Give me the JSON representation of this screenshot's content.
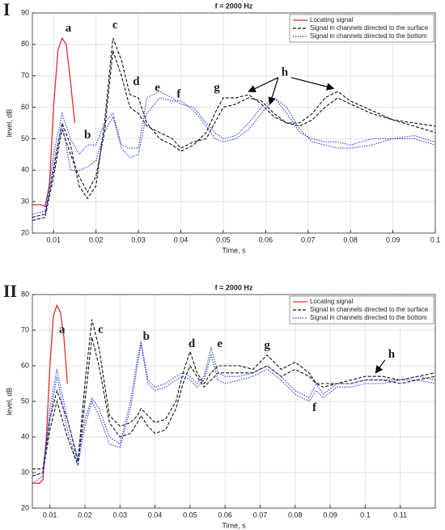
{
  "chart_data": [
    {
      "type": "line",
      "panel_label": "I",
      "title": "f = 2000 Hz",
      "x_label": "Time, s",
      "y_label": "level, dB",
      "xlim": [
        0.005,
        0.1
      ],
      "xticks": [
        0.01,
        0.02,
        0.03,
        0.04,
        0.05,
        0.06,
        0.07,
        0.08,
        0.09,
        0.1
      ],
      "ylim": [
        20,
        90
      ],
      "yticks": [
        20,
        30,
        40,
        50,
        60,
        70,
        80,
        90
      ],
      "grid": true,
      "legend": "top-right",
      "series": [
        {
          "name": "Locating signal",
          "color": "#e03030",
          "style": "solid",
          "x": [
            0.005,
            0.007,
            0.008,
            0.009,
            0.01,
            0.011,
            0.012,
            0.013,
            0.014,
            0.015
          ],
          "values": [
            [
              29,
              29,
              28.5,
              35,
              60,
              78,
              82,
              80,
              68,
              55
            ]
          ]
        },
        {
          "name": "Signal in channels directed to the surface",
          "color": "#111111",
          "style": "dashed",
          "x": [
            0.005,
            0.008,
            0.01,
            0.012,
            0.014,
            0.016,
            0.018,
            0.02,
            0.022,
            0.024,
            0.026,
            0.028,
            0.03,
            0.032,
            0.035,
            0.038,
            0.04,
            0.043,
            0.046,
            0.048,
            0.05,
            0.053,
            0.056,
            0.059,
            0.062,
            0.065,
            0.068,
            0.071,
            0.074,
            0.077,
            0.08,
            0.085,
            0.09,
            0.095,
            0.1
          ],
          "values": [
            [
              25,
              26,
              40,
              55,
              48,
              35,
              31,
              35,
              55,
              82,
              75,
              64,
              63,
              55,
              50,
              48,
              46,
              48,
              52,
              58,
              63,
              63,
              64,
              61,
              57,
              55,
              55,
              58,
              63,
              65,
              62,
              59,
              56,
              55,
              54
            ],
            [
              24,
              25,
              38,
              53,
              45,
              38,
              33,
              38,
              52,
              78,
              70,
              60,
              58,
              54,
              52,
              50,
              47,
              49,
              50,
              55,
              60,
              61,
              63,
              62,
              58,
              55,
              54,
              56,
              60,
              63,
              61,
              58,
              56,
              54,
              52
            ]
          ]
        },
        {
          "name": "Signal in channels directed to the bottom",
          "color": "#2b3fd6",
          "style": "dotted",
          "x": [
            0.005,
            0.008,
            0.01,
            0.012,
            0.014,
            0.016,
            0.018,
            0.02,
            0.022,
            0.024,
            0.026,
            0.028,
            0.03,
            0.032,
            0.035,
            0.038,
            0.04,
            0.043,
            0.046,
            0.048,
            0.05,
            0.053,
            0.056,
            0.059,
            0.062,
            0.065,
            0.068,
            0.071,
            0.074,
            0.077,
            0.08,
            0.085,
            0.09,
            0.095,
            0.1
          ],
          "values": [
            [
              26,
              27,
              45,
              58,
              50,
              45,
              48,
              48,
              55,
              58,
              48,
              47,
              47,
              63,
              65,
              63,
              61,
              60,
              55,
              52,
              50,
              51,
              55,
              60,
              63,
              58,
              52,
              50,
              49,
              49,
              48,
              50,
              50,
              51,
              49
            ],
            [
              24,
              25,
              42,
              55,
              40,
              40,
              41,
              43,
              52,
              57,
              47,
              44,
              45,
              58,
              63,
              62,
              62,
              59,
              54,
              50,
              49,
              50,
              53,
              58,
              63,
              60,
              53,
              49,
              48,
              47,
              47,
              48,
              50,
              50,
              48
            ]
          ]
        }
      ],
      "annotations": [
        {
          "text": "a",
          "x": 0.0135,
          "y": 85
        },
        {
          "text": "b",
          "x": 0.018,
          "y": 51
        },
        {
          "text": "c",
          "x": 0.0245,
          "y": 86
        },
        {
          "text": "d",
          "x": 0.0295,
          "y": 68
        },
        {
          "text": "e",
          "x": 0.0345,
          "y": 66
        },
        {
          "text": "f",
          "x": 0.0395,
          "y": 64
        },
        {
          "text": "g",
          "x": 0.0485,
          "y": 66
        },
        {
          "text": "h",
          "x": 0.0645,
          "y": 71,
          "points_to": [
            [
              0.056,
              65
            ],
            [
              0.061,
              61
            ],
            [
              0.076,
              66
            ]
          ]
        }
      ]
    },
    {
      "type": "line",
      "panel_label": "II",
      "title": "f = 2000 Hz",
      "x_label": "Time, s",
      "y_label": "level, dB",
      "xlim": [
        0.005,
        0.12
      ],
      "xticks": [
        0.01,
        0.02,
        0.03,
        0.04,
        0.05,
        0.06,
        0.07,
        0.08,
        0.09,
        0.1,
        0.11
      ],
      "ylim": [
        20,
        80
      ],
      "yticks": [
        20,
        30,
        40,
        50,
        60,
        70,
        80
      ],
      "grid": true,
      "legend": "top-right",
      "series": [
        {
          "name": "Locating signal",
          "color": "#e03030",
          "style": "solid",
          "x": [
            0.005,
            0.007,
            0.008,
            0.009,
            0.01,
            0.011,
            0.012,
            0.013,
            0.014,
            0.015
          ],
          "values": [
            [
              27,
              27,
              28,
              40,
              60,
              74,
              77,
              75,
              68,
              55
            ]
          ]
        },
        {
          "name": "Signal in channels directed to the surface",
          "color": "#111111",
          "style": "dashed",
          "x": [
            0.005,
            0.008,
            0.01,
            0.012,
            0.015,
            0.018,
            0.02,
            0.022,
            0.024,
            0.027,
            0.03,
            0.033,
            0.035,
            0.036,
            0.038,
            0.04,
            0.043,
            0.046,
            0.048,
            0.05,
            0.052,
            0.054,
            0.056,
            0.058,
            0.06,
            0.064,
            0.068,
            0.072,
            0.076,
            0.08,
            0.084,
            0.086,
            0.088,
            0.092,
            0.096,
            0.1,
            0.105,
            0.11,
            0.115,
            0.12
          ],
          "values": [
            [
              31,
              31,
              45,
              53,
              45,
              33,
              55,
              73,
              65,
              46,
              43,
              44,
              46,
              48,
              46,
              44,
              45,
              50,
              58,
              64,
              58,
              55,
              58,
              60,
              60,
              60,
              59,
              63,
              59,
              61,
              58,
              55,
              54,
              55,
              56,
              57,
              57,
              56,
              57,
              58
            ],
            [
              29,
              30,
              42,
              50,
              40,
              32,
              50,
              68,
              60,
              44,
              40,
              41,
              44,
              46,
              43,
              41,
              42,
              48,
              55,
              60,
              57,
              54,
              56,
              58,
              58,
              58,
              58,
              60,
              57,
              59,
              57,
              55,
              55,
              55,
              55,
              56,
              56,
              55,
              56,
              57
            ]
          ]
        },
        {
          "name": "Signal in channels directed to the bottom",
          "color": "#2b3fd6",
          "style": "dotted",
          "x": [
            0.005,
            0.008,
            0.01,
            0.012,
            0.015,
            0.018,
            0.02,
            0.022,
            0.024,
            0.027,
            0.03,
            0.033,
            0.035,
            0.036,
            0.038,
            0.04,
            0.043,
            0.046,
            0.048,
            0.05,
            0.052,
            0.054,
            0.056,
            0.058,
            0.06,
            0.064,
            0.068,
            0.072,
            0.076,
            0.08,
            0.084,
            0.086,
            0.088,
            0.092,
            0.096,
            0.1,
            0.105,
            0.11,
            0.115,
            0.12
          ],
          "values": [
            [
              29,
              30,
              48,
              59,
              45,
              34,
              45,
              51,
              48,
              40,
              38,
              50,
              62,
              67,
              56,
              54,
              55,
              57,
              58,
              57,
              55,
              57,
              65,
              58,
              57,
              57,
              58,
              60,
              57,
              53,
              51,
              55,
              52,
              55,
              55,
              56,
              56,
              56,
              57,
              56
            ],
            [
              27,
              29,
              45,
              57,
              42,
              32,
              43,
              50,
              46,
              38,
              37,
              48,
              60,
              66,
              55,
              53,
              54,
              56,
              57,
              56,
              54,
              56,
              63,
              56,
              55,
              56,
              57,
              59,
              56,
              52,
              50,
              53,
              51,
              54,
              54,
              55,
              55,
              56,
              56,
              55
            ]
          ]
        }
      ],
      "annotations": [
        {
          "text": "a",
          "x": 0.0135,
          "y": 70
        },
        {
          "text": "c",
          "x": 0.0245,
          "y": 70
        },
        {
          "text": "b",
          "x": 0.0375,
          "y": 68
        },
        {
          "text": "d",
          "x": 0.0505,
          "y": 66
        },
        {
          "text": "e",
          "x": 0.0585,
          "y": 66
        },
        {
          "text": "g",
          "x": 0.072,
          "y": 65.5
        },
        {
          "text": "f",
          "x": 0.0855,
          "y": 48
        },
        {
          "text": "h",
          "x": 0.1075,
          "y": 63,
          "points_to": [
            [
              0.103,
              58
            ]
          ]
        }
      ]
    }
  ]
}
